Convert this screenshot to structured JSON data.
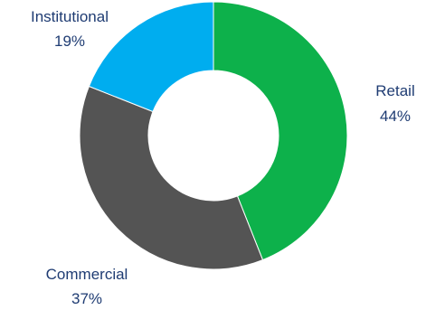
{
  "chart_data": {
    "type": "pie",
    "variant": "donut",
    "title": "",
    "legend": "none",
    "slices": [
      {
        "label": "Retail",
        "value": 44,
        "value_label": "44%",
        "color": "#0db14b"
      },
      {
        "label": "Commercial",
        "value": 37,
        "value_label": "37%",
        "color": "#545454"
      },
      {
        "label": "Institutional",
        "value": 19,
        "value_label": "19%",
        "color": "#00adef"
      }
    ]
  }
}
